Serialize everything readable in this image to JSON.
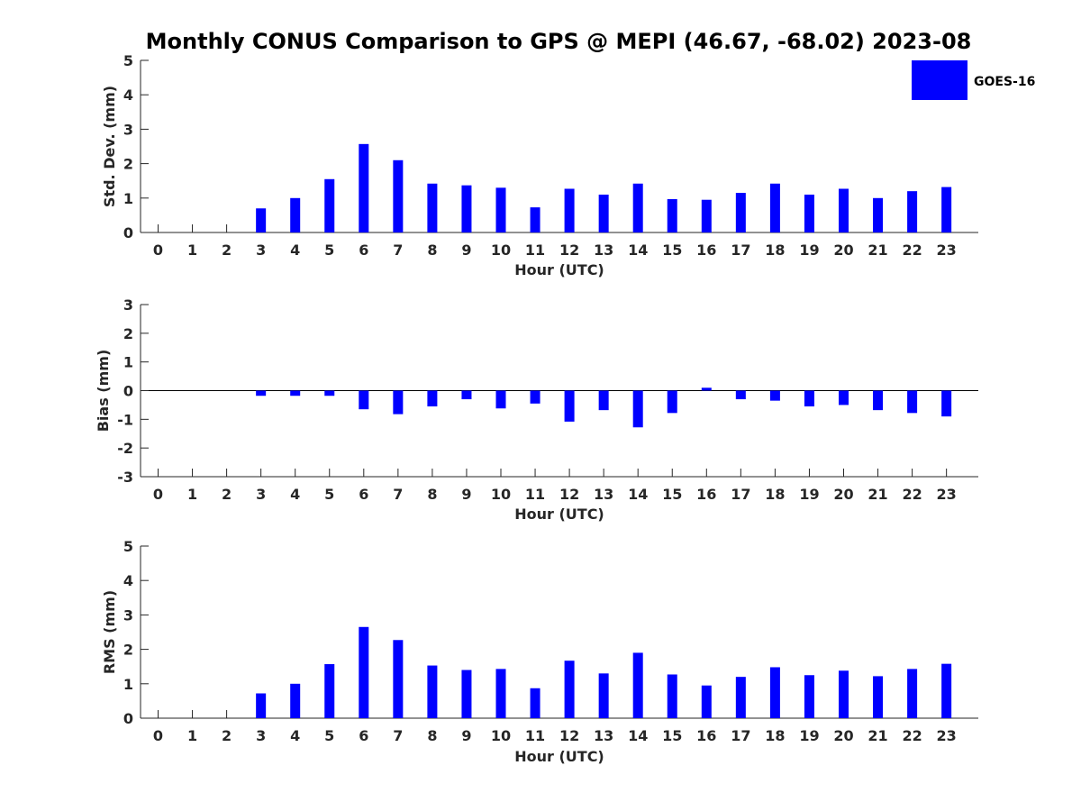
{
  "figure": {
    "title": "Monthly CONUS Comparison to GPS @ MEPI (46.67, -68.02) 2023-08",
    "legend": {
      "label": "GOES-16",
      "color": "#0000ff",
      "position": "top-right"
    }
  },
  "chart_data": [
    {
      "type": "bar",
      "title": "Monthly CONUS Comparison to GPS @ MEPI (46.67, -68.02) 2023-08",
      "xlabel": "Hour (UTC)",
      "ylabel": "Std. Dev. (mm)",
      "ylim": [
        0,
        5
      ],
      "yticks": [
        0,
        1,
        2,
        3,
        4,
        5
      ],
      "categories": [
        "0",
        "1",
        "2",
        "3",
        "4",
        "5",
        "6",
        "7",
        "8",
        "9",
        "10",
        "11",
        "12",
        "13",
        "14",
        "15",
        "16",
        "17",
        "18",
        "19",
        "20",
        "21",
        "22",
        "23"
      ],
      "series": [
        {
          "name": "GOES-16",
          "color": "#0000ff",
          "values": [
            0,
            0,
            0,
            0.7,
            1.0,
            1.55,
            2.57,
            2.1,
            1.42,
            1.37,
            1.3,
            0.73,
            1.27,
            1.1,
            1.42,
            0.97,
            0.95,
            1.15,
            1.42,
            1.1,
            1.27,
            1.0,
            1.2,
            1.32
          ]
        }
      ],
      "legend": "top-right",
      "grid": false
    },
    {
      "type": "bar",
      "xlabel": "Hour (UTC)",
      "ylabel": "Bias (mm)",
      "ylim": [
        -3,
        3
      ],
      "yticks": [
        -3,
        -2,
        -1,
        0,
        1,
        2,
        3
      ],
      "categories": [
        "0",
        "1",
        "2",
        "3",
        "4",
        "5",
        "6",
        "7",
        "8",
        "9",
        "10",
        "11",
        "12",
        "13",
        "14",
        "15",
        "16",
        "17",
        "18",
        "19",
        "20",
        "21",
        "22",
        "23"
      ],
      "series": [
        {
          "name": "GOES-16",
          "color": "#0000ff",
          "values": [
            0,
            0,
            0,
            -0.18,
            -0.18,
            -0.18,
            -0.65,
            -0.82,
            -0.55,
            -0.3,
            -0.62,
            -0.45,
            -1.08,
            -0.68,
            -1.28,
            -0.78,
            0.1,
            -0.3,
            -0.35,
            -0.55,
            -0.5,
            -0.68,
            -0.78,
            -0.9
          ]
        }
      ],
      "grid": false
    },
    {
      "type": "bar",
      "xlabel": "Hour (UTC)",
      "ylabel": "RMS (mm)",
      "ylim": [
        0,
        5
      ],
      "yticks": [
        0,
        1,
        2,
        3,
        4,
        5
      ],
      "categories": [
        "0",
        "1",
        "2",
        "3",
        "4",
        "5",
        "6",
        "7",
        "8",
        "9",
        "10",
        "11",
        "12",
        "13",
        "14",
        "15",
        "16",
        "17",
        "18",
        "19",
        "20",
        "21",
        "22",
        "23"
      ],
      "series": [
        {
          "name": "GOES-16",
          "color": "#0000ff",
          "values": [
            0,
            0,
            0,
            0.72,
            1.0,
            1.57,
            2.65,
            2.27,
            1.53,
            1.4,
            1.43,
            0.87,
            1.67,
            1.3,
            1.9,
            1.27,
            0.95,
            1.2,
            1.48,
            1.25,
            1.38,
            1.22,
            1.43,
            1.58
          ]
        }
      ],
      "grid": false
    }
  ]
}
